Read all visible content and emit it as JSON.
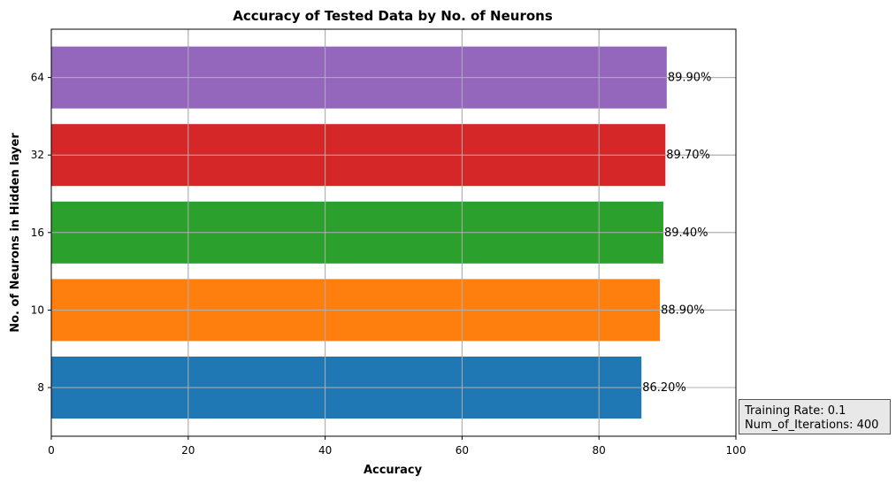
{
  "chart_data": {
    "type": "bar",
    "orientation": "horizontal",
    "title": "Accuracy of Tested Data by No. of Neurons",
    "xlabel": "Accuracy",
    "ylabel": "No. of Neurons in Hidden layer",
    "xlim": [
      0,
      100
    ],
    "xticks": [
      "0",
      "20",
      "40",
      "60",
      "80",
      "100"
    ],
    "categories": [
      "8",
      "10",
      "16",
      "32",
      "64"
    ],
    "values": [
      86.2,
      88.9,
      89.4,
      89.7,
      89.9
    ],
    "value_labels": [
      "86.20%",
      "88.90%",
      "89.40%",
      "89.70%",
      "89.90%"
    ],
    "colors": [
      "#1f77b4",
      "#ff7f0e",
      "#2ca02c",
      "#d62728",
      "#9467bd"
    ],
    "grid": true
  },
  "note": {
    "lines": [
      "Training Rate: 0.1",
      "Num_of_Iterations: 400"
    ]
  }
}
